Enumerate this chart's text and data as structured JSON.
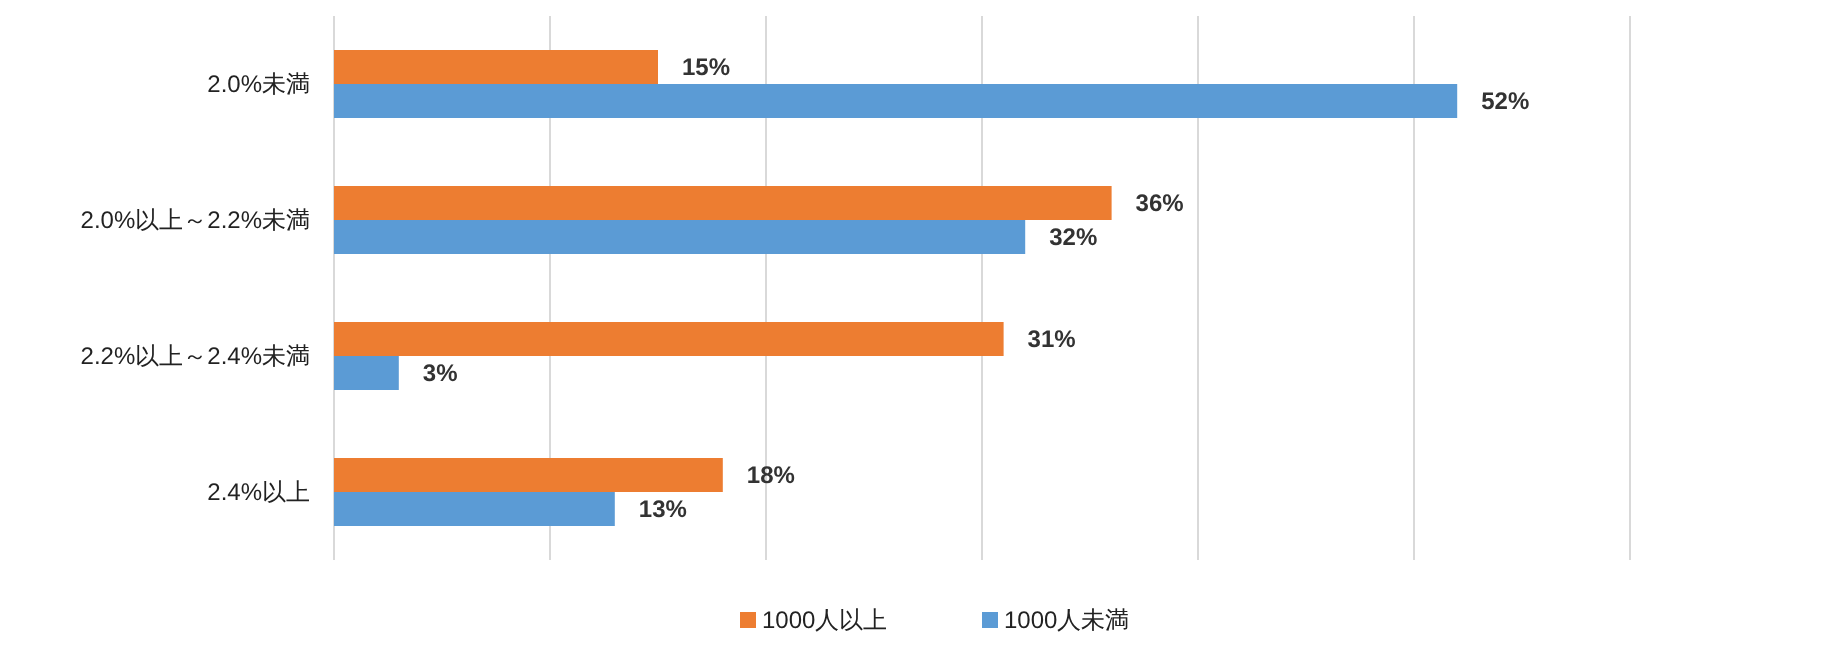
{
  "chart_data": {
    "type": "bar",
    "orientation": "horizontal",
    "categories": [
      "2.0%未満",
      "2.0%以上～2.2%未満",
      "2.2%以上～2.4%未満",
      "2.4%以上"
    ],
    "series": [
      {
        "name": "1000人以上",
        "color": "#ed7d31",
        "values": [
          15,
          36,
          31,
          18
        ],
        "value_labels": [
          "15%",
          "36%",
          "31%",
          "18%"
        ]
      },
      {
        "name": "1000人未満",
        "color": "#5b9bd5",
        "values": [
          52,
          32,
          3,
          13
        ],
        "value_labels": [
          "52%",
          "32%",
          "3%",
          "13%"
        ]
      }
    ],
    "xlim": [
      0,
      60
    ],
    "xticks": [
      {
        "value": 0,
        "label": null
      },
      {
        "value": 10,
        "label": null
      },
      {
        "value": 20,
        "label": null
      },
      {
        "value": 30,
        "label": null
      },
      {
        "value": 40,
        "label": null
      },
      {
        "value": 50,
        "label": null
      },
      {
        "value": 60,
        "label": null
      }
    ],
    "tick_labels": "y",
    "grid": "x",
    "legend": "bottom"
  }
}
